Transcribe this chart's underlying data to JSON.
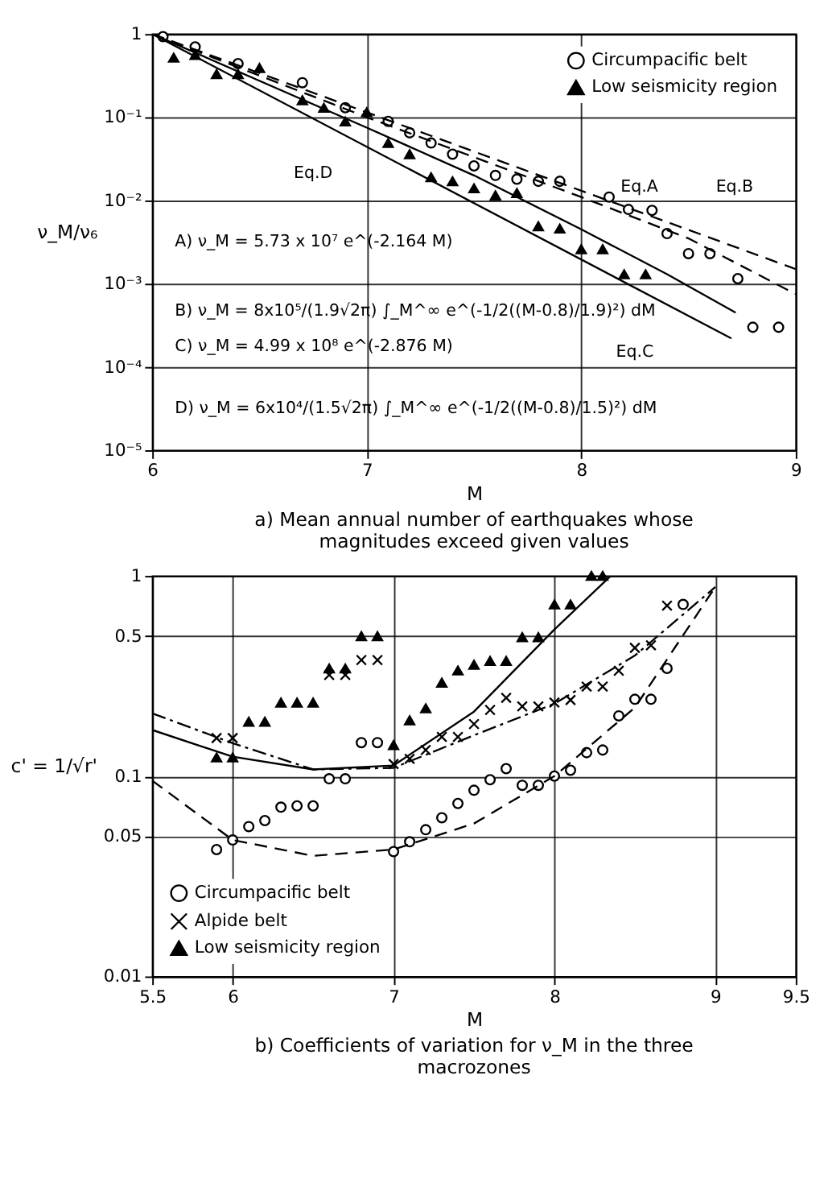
{
  "chart_data": [
    {
      "type": "scatter",
      "title": "a) Mean annual number of earthquakes whose magnitudes exceed given values",
      "xlabel": "M",
      "ylabel": "ν_M/ν₆",
      "log": "y",
      "grid": true,
      "legend": "top right",
      "xlim": [
        6,
        9
      ],
      "xticks": [
        6,
        7,
        8,
        9
      ],
      "ylim": [
        1e-05,
        1
      ],
      "yticks": [
        1,
        {
          "value": 0.1,
          "label": "10⁻¹"
        },
        {
          "value": 0.01,
          "label": "10⁻²"
        },
        {
          "value": 0.001,
          "label": "10⁻³"
        },
        {
          "value": 0.0001,
          "label": "10⁻⁴"
        },
        {
          "value": 1e-05,
          "label": "10⁻⁵"
        }
      ],
      "series": [
        {
          "name": "Circumpacific belt",
          "color": "#000000",
          "marker": "circle",
          "x": [
            6.05,
            6.2,
            6.4,
            6.7,
            6.9,
            7.1,
            7.2,
            7.3,
            7.4,
            7.5,
            7.6,
            7.7,
            7.8,
            7.9,
            8.13,
            8.22,
            8.33,
            8.4,
            8.5,
            8.6,
            8.73,
            8.8,
            8.92
          ],
          "values": [
            0.93,
            0.7,
            0.44,
            0.26,
            0.13,
            0.089,
            0.065,
            0.049,
            0.036,
            0.026,
            0.02,
            0.018,
            0.017,
            0.017,
            0.011,
            0.0078,
            0.0076,
            0.004,
            0.0023,
            0.0023,
            0.00115,
            0.0003,
            0.0003
          ]
        },
        {
          "name": "Low seismicity region",
          "color": "#000000",
          "marker": "triangle",
          "x": [
            6.1,
            6.2,
            6.3,
            6.4,
            6.5,
            6.7,
            6.8,
            6.9,
            7.0,
            7.1,
            7.2,
            7.3,
            7.4,
            7.5,
            7.6,
            7.7,
            7.8,
            7.9,
            8.0,
            8.1,
            8.2,
            8.3
          ],
          "values": [
            0.52,
            0.56,
            0.33,
            0.33,
            0.39,
            0.16,
            0.13,
            0.089,
            0.115,
            0.049,
            0.036,
            0.019,
            0.017,
            0.014,
            0.0115,
            0.0123,
            0.0049,
            0.0046,
            0.0026,
            0.0026,
            0.0013,
            0.0013
          ]
        },
        {
          "type": "line",
          "color": "#000000",
          "line_style": "dashed",
          "x": [
            6,
            9
          ],
          "values": [
            1,
            0.0015
          ]
        },
        {
          "type": "line",
          "color": "#000000",
          "line_style": "dashed",
          "x": [
            6,
            7,
            8,
            8.5,
            9
          ],
          "values": [
            1,
            0.1,
            0.011,
            0.0035,
            0.00075
          ]
        },
        {
          "type": "line",
          "color": "#000000",
          "line_style": "solid",
          "x": [
            6,
            8.7
          ],
          "values": [
            1,
            0.00022
          ]
        },
        {
          "type": "line",
          "color": "#000000",
          "line_style": "solid",
          "x": [
            6,
            7,
            7.5,
            8,
            8.4,
            8.72
          ],
          "values": [
            1,
            0.075,
            0.02,
            0.0045,
            0.0013,
            0.00045
          ]
        }
      ],
      "annotations": [
        "A) ν_M = 5.73 x 10⁷ e^(-2.164 M)",
        "B) ν_M = 8x10⁵/(1.9√2π) ∫_M^∞ e^(-1/2((M-0.8)/1.9)²) dM",
        "C) ν_M = 4.99 x 10⁸ e^(-2.876 M)",
        "D) ν_M = 6x10⁴/(1.5√2π) ∫_M^∞ e^(-1/2((M-0.8)/1.5)²) dM",
        "Eq.A",
        "Eq.B",
        "Eq.C",
        "Eq.D"
      ]
    },
    {
      "type": "scatter",
      "title": "b) Coefficients of variation for ν_M in the three macrozones",
      "xlabel": "M",
      "ylabel": "c' = 1/√r'",
      "log": "y",
      "grid": true,
      "legend": "bottom left",
      "xlim": [
        5.5,
        9.5
      ],
      "xticks": [
        5.5,
        6,
        7,
        8,
        9,
        9.5
      ],
      "ylim": [
        0.01,
        1
      ],
      "yticks": [
        0.01,
        0.05,
        0.1,
        0.5,
        1
      ],
      "series": [
        {
          "name": "Circumpacific belt",
          "color": "#000000",
          "marker": "circle",
          "x": [
            5.9,
            6.0,
            6.1,
            6.2,
            6.3,
            6.4,
            6.5,
            6.6,
            6.7,
            6.8,
            6.9,
            7.0,
            7.1,
            7.2,
            7.3,
            7.4,
            7.5,
            7.6,
            7.7,
            7.8,
            7.9,
            8.0,
            8.1,
            8.2,
            8.3,
            8.4,
            8.5,
            8.6,
            8.7,
            8.8
          ],
          "values": [
            0.043,
            0.048,
            0.056,
            0.06,
            0.07,
            0.071,
            0.071,
            0.097,
            0.097,
            0.147,
            0.147,
            0.042,
            0.047,
            0.054,
            0.062,
            0.073,
            0.085,
            0.096,
            0.109,
            0.09,
            0.09,
            0.1,
            0.107,
            0.131,
            0.135,
            0.2,
            0.242,
            0.242,
            0.345,
            0.72
          ]
        },
        {
          "name": "Alpide belt",
          "color": "#000000",
          "marker": "cross",
          "x": [
            5.9,
            6.0,
            6.6,
            6.7,
            6.8,
            6.9,
            7.0,
            7.1,
            7.2,
            7.3,
            7.4,
            7.5,
            7.6,
            7.7,
            7.8,
            7.9,
            8.0,
            8.1,
            8.2,
            8.3,
            8.4,
            8.5,
            8.6,
            8.7
          ],
          "values": [
            0.155,
            0.155,
            0.32,
            0.32,
            0.38,
            0.38,
            0.115,
            0.122,
            0.135,
            0.157,
            0.157,
            0.182,
            0.214,
            0.246,
            0.223,
            0.223,
            0.233,
            0.24,
            0.28,
            0.28,
            0.336,
            0.437,
            0.45,
            0.71
          ]
        },
        {
          "name": "Low seismicity region",
          "color": "#000000",
          "marker": "triangle",
          "x": [
            5.9,
            6.0,
            6.1,
            6.2,
            6.3,
            6.4,
            6.5,
            6.6,
            6.7,
            6.8,
            6.9,
            7.0,
            7.1,
            7.2,
            7.3,
            7.4,
            7.5,
            7.6,
            7.7,
            7.8,
            7.9,
            8.0,
            8.1,
            8.23,
            8.3
          ],
          "values": [
            0.124,
            0.124,
            0.187,
            0.187,
            0.233,
            0.233,
            0.233,
            0.345,
            0.345,
            0.5,
            0.5,
            0.143,
            0.19,
            0.218,
            0.293,
            0.337,
            0.36,
            0.376,
            0.376,
            0.494,
            0.494,
            0.72,
            0.72,
            1,
            1
          ]
        },
        {
          "type": "line",
          "color": "#000000",
          "line_style": "dashed",
          "x": [
            5.5,
            6,
            6.5,
            7,
            7.5,
            8,
            8.5,
            9
          ],
          "values": [
            0.095,
            0.048,
            0.04,
            0.043,
            0.058,
            0.1,
            0.22,
            0.88
          ]
        },
        {
          "type": "line",
          "color": "#000000",
          "line_style": "dashdot",
          "x": [
            5.5,
            6,
            6.5,
            7,
            7.5,
            8,
            8.5,
            9
          ],
          "values": [
            0.206,
            0.146,
            0.108,
            0.11,
            0.16,
            0.23,
            0.4,
            0.88
          ]
        },
        {
          "type": "line",
          "color": "#000000",
          "line_style": "solid",
          "x": [
            5.5,
            6,
            6.5,
            7,
            7.5,
            8,
            8.35
          ],
          "values": [
            0.17,
            0.125,
            0.108,
            0.113,
            0.21,
            0.54,
            1
          ]
        }
      ]
    }
  ]
}
